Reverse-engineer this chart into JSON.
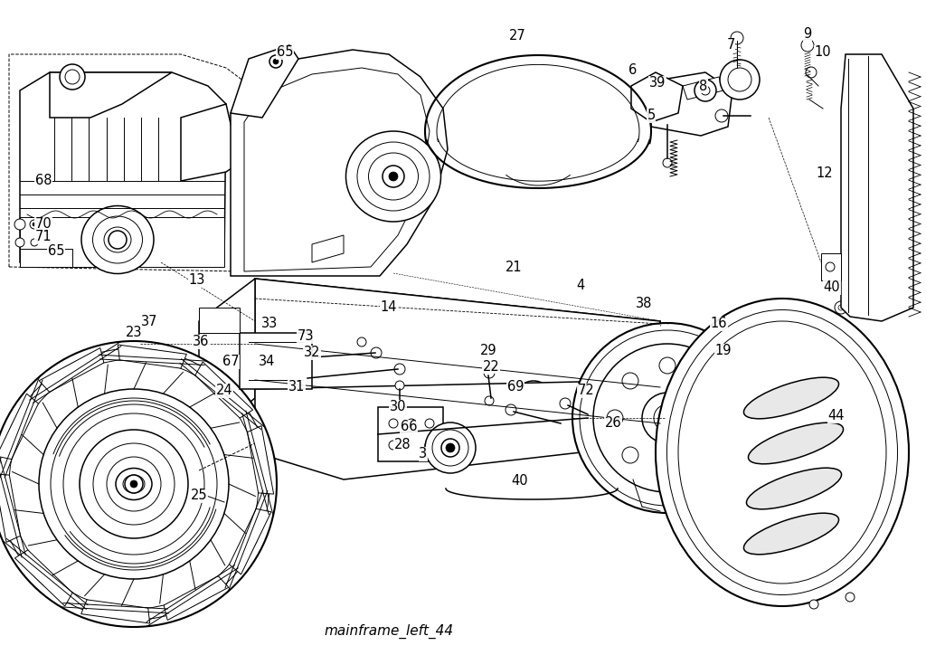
{
  "footer_text": "mainframe_left_44",
  "background_color": "#ffffff",
  "label_fontsize": 10.5,
  "footer_fontsize": 11,
  "labels": [
    [
      "65",
      315,
      58
    ],
    [
      "68",
      48,
      200
    ],
    [
      "70",
      48,
      248
    ],
    [
      "71",
      48,
      262
    ],
    [
      "65",
      62,
      278
    ],
    [
      "13",
      218,
      310
    ],
    [
      "37",
      165,
      355
    ],
    [
      "36",
      222,
      378
    ],
    [
      "33",
      298,
      358
    ],
    [
      "73",
      338,
      372
    ],
    [
      "32",
      345,
      390
    ],
    [
      "67",
      255,
      400
    ],
    [
      "34",
      295,
      400
    ],
    [
      "31",
      328,
      428
    ],
    [
      "14",
      430,
      340
    ],
    [
      "21",
      568,
      295
    ],
    [
      "4",
      642,
      315
    ],
    [
      "38",
      712,
      335
    ],
    [
      "27",
      572,
      40
    ],
    [
      "6",
      700,
      78
    ],
    [
      "39",
      727,
      92
    ],
    [
      "5",
      720,
      128
    ],
    [
      "8",
      778,
      95
    ],
    [
      "7",
      808,
      50
    ],
    [
      "9",
      893,
      38
    ],
    [
      "10",
      910,
      58
    ],
    [
      "12",
      912,
      192
    ],
    [
      "16",
      795,
      358
    ],
    [
      "19",
      800,
      388
    ],
    [
      "26",
      678,
      468
    ],
    [
      "40",
      920,
      318
    ],
    [
      "40",
      575,
      532
    ],
    [
      "44",
      925,
      460
    ],
    [
      "72",
      648,
      432
    ],
    [
      "69",
      570,
      428
    ],
    [
      "29",
      540,
      388
    ],
    [
      "22",
      543,
      405
    ],
    [
      "30",
      440,
      450
    ],
    [
      "66",
      452,
      472
    ],
    [
      "28",
      445,
      492
    ],
    [
      "3",
      468,
      502
    ],
    [
      "23",
      148,
      368
    ],
    [
      "24",
      248,
      432
    ],
    [
      "25",
      220,
      548
    ]
  ]
}
